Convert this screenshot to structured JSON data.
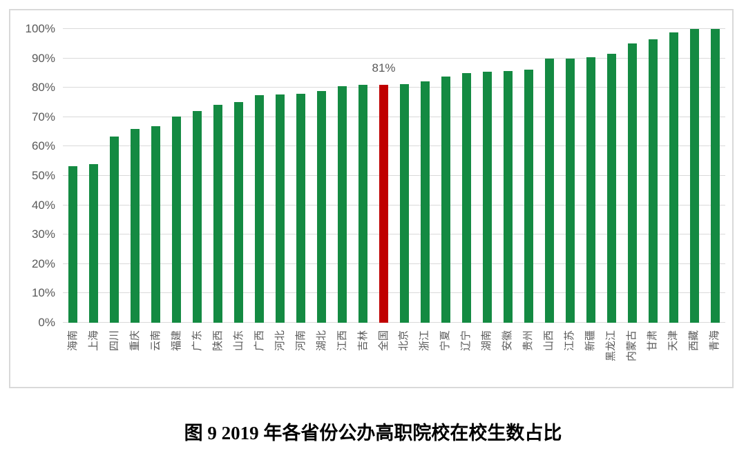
{
  "figure": {
    "caption": "图 9  2019 年各省份公办高职院校在校生数占比"
  },
  "chart_data": {
    "type": "bar",
    "title": "图 9  2019 年各省份公办高职院校在校生数占比",
    "categories": [
      "海南",
      "上海",
      "四川",
      "重庆",
      "云南",
      "福建",
      "广东",
      "陕西",
      "山东",
      "广西",
      "河北",
      "河南",
      "湖北",
      "江西",
      "吉林",
      "全国",
      "北京",
      "浙江",
      "宁夏",
      "辽宁",
      "湖南",
      "安徽",
      "贵州",
      "山西",
      "江苏",
      "新疆",
      "黑龙江",
      "内蒙古",
      "甘肃",
      "天津",
      "西藏",
      "青海"
    ],
    "values": [
      53.2,
      53.9,
      63.3,
      66.0,
      67.0,
      70.3,
      72.1,
      74.2,
      75.1,
      77.5,
      77.8,
      78.0,
      78.9,
      80.5,
      80.9,
      81.0,
      81.3,
      82.2,
      83.8,
      85.0,
      85.5,
      85.8,
      86.2,
      90.0,
      90.0,
      90.4,
      91.6,
      95.1,
      96.4,
      98.9,
      100.0,
      100.0
    ],
    "highlight": {
      "category": "全国",
      "index": 15,
      "value_label": "81%",
      "color": "#C00000"
    },
    "bar_color": "#148A42",
    "xlabel": "",
    "ylabel": "",
    "ylim": [
      0,
      100
    ],
    "yticks": [
      "0%",
      "10%",
      "20%",
      "30%",
      "40%",
      "50%",
      "60%",
      "70%",
      "80%",
      "90%",
      "100%"
    ],
    "ytick_step_pct": 10,
    "grid": true,
    "gridline_color": "#D9D9D9",
    "axis_text_color": "#595959",
    "plot_border_color": "#D9D9D9",
    "legend_position": "none",
    "x_label_rotation_deg": -90
  }
}
